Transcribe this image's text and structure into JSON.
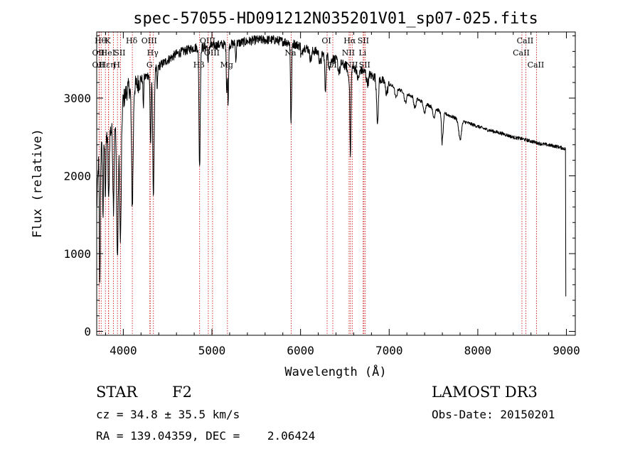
{
  "chart_data": {
    "type": "line",
    "title": "spec-57055-HD091212N035201V01_sp07-025.fits",
    "xlabel": "Wavelength (Å)",
    "ylabel": "Flux (relative)",
    "xlim": [
      3700,
      9100
    ],
    "ylim": [
      -50,
      3850
    ],
    "xticks": [
      4000,
      5000,
      6000,
      7000,
      8000,
      9000
    ],
    "xtick_labels": [
      "4000",
      "5000",
      "6000",
      "7000",
      "8000",
      "9000"
    ],
    "yticks": [
      0,
      1000,
      2000,
      3000
    ],
    "ytick_labels": [
      "0",
      "1000",
      "2000",
      "3000"
    ],
    "grid": false,
    "legend": "none",
    "continuum": {
      "x": [
        3700,
        3720,
        3760,
        3800,
        3850,
        3900,
        3950,
        4000,
        4050,
        4100,
        4150,
        4200,
        4300,
        4400,
        4500,
        4600,
        4700,
        4800,
        4900,
        5000,
        5100,
        5200,
        5300,
        5400,
        5500,
        5600,
        5700,
        5800,
        5900,
        6000,
        6100,
        6200,
        6300,
        6400,
        6500,
        6600,
        6700,
        6800,
        6900,
        7000,
        7100,
        7200,
        7300,
        7400,
        7500,
        7600,
        7700,
        7800,
        7900,
        8000,
        8100,
        8200,
        8300,
        8400,
        8500,
        8600,
        8700,
        8800,
        8900,
        8990
      ],
      "y": [
        1600,
        2200,
        2400,
        2500,
        2600,
        2650,
        2750,
        3000,
        3150,
        3150,
        3200,
        3250,
        3320,
        3420,
        3500,
        3580,
        3620,
        3660,
        3660,
        3680,
        3700,
        3700,
        3720,
        3740,
        3760,
        3760,
        3760,
        3740,
        3720,
        3680,
        3640,
        3600,
        3550,
        3500,
        3430,
        3400,
        3360,
        3300,
        3250,
        3180,
        3120,
        3060,
        3000,
        2940,
        2880,
        2820,
        2770,
        2720,
        2680,
        2640,
        2600,
        2570,
        2540,
        2500,
        2480,
        2450,
        2420,
        2400,
        2380,
        2350
      ]
    },
    "absorption_lines": [
      {
        "center": 3735,
        "depth": 1700,
        "width": 5
      },
      {
        "center": 3771,
        "depth": 900,
        "width": 5
      },
      {
        "center": 3798,
        "depth": 700,
        "width": 5
      },
      {
        "center": 3835,
        "depth": 900,
        "width": 6
      },
      {
        "center": 3889,
        "depth": 1000,
        "width": 7
      },
      {
        "center": 3934,
        "depth": 1750,
        "width": 9
      },
      {
        "center": 3968,
        "depth": 1650,
        "width": 9
      },
      {
        "center": 4102,
        "depth": 1500,
        "width": 9
      },
      {
        "center": 4226,
        "depth": 400,
        "width": 4
      },
      {
        "center": 4308,
        "depth": 900,
        "width": 6
      },
      {
        "center": 4340,
        "depth": 1600,
        "width": 8
      },
      {
        "center": 4383,
        "depth": 300,
        "width": 4
      },
      {
        "center": 4861,
        "depth": 1550,
        "width": 7
      },
      {
        "center": 4957,
        "depth": 250,
        "width": 4
      },
      {
        "center": 5167,
        "depth": 600,
        "width": 5
      },
      {
        "center": 5183,
        "depth": 800,
        "width": 5
      },
      {
        "center": 5270,
        "depth": 250,
        "width": 4
      },
      {
        "center": 5890,
        "depth": 650,
        "width": 5
      },
      {
        "center": 5896,
        "depth": 600,
        "width": 5
      },
      {
        "center": 6280,
        "depth": 500,
        "width": 6
      },
      {
        "center": 6563,
        "depth": 1150,
        "width": 6
      },
      {
        "center": 6870,
        "depth": 500,
        "width": 8
      },
      {
        "center": 7600,
        "depth": 350,
        "width": 10
      },
      {
        "center": 7800,
        "depth": 250,
        "width": 15
      }
    ],
    "reference_lines": [
      {
        "x": 3727,
        "label": "OII",
        "row": 2
      },
      {
        "x": 3727,
        "label": "OII",
        "row": 3
      },
      {
        "x": 3750,
        "label": "Hθ",
        "row": 1
      },
      {
        "x": 3798,
        "label": "Hε",
        "row": 3
      },
      {
        "x": 3833,
        "label": "K",
        "row": 1
      },
      {
        "x": 3835,
        "label": "HeI",
        "row": 2
      },
      {
        "x": 3889,
        "label": "η",
        "row": 3
      },
      {
        "x": 3934,
        "label": "H",
        "row": 3
      },
      {
        "x": 3968,
        "label": "SII",
        "row": 2
      },
      {
        "x": 4102,
        "label": "Hδ",
        "row": 1
      },
      {
        "x": 4300,
        "label": "OIII",
        "row": 1
      },
      {
        "x": 4304,
        "label": "G",
        "row": 3
      },
      {
        "x": 4340,
        "label": "Hγ",
        "row": 2
      },
      {
        "x": 4861,
        "label": "Hβ",
        "row": 3
      },
      {
        "x": 4959,
        "label": "OIII",
        "row": 1
      },
      {
        "x": 5007,
        "label": "OIII",
        "row": 2
      },
      {
        "x": 5175,
        "label": "Mg",
        "row": 3
      },
      {
        "x": 5894,
        "label": "Na",
        "row": 2
      },
      {
        "x": 6300,
        "label": "OI",
        "row": 1
      },
      {
        "x": 6364,
        "label": "OI",
        "row": 3
      },
      {
        "x": 6548,
        "label": "NII",
        "row": 2
      },
      {
        "x": 6563,
        "label": "Hα",
        "row": 1
      },
      {
        "x": 6583,
        "label": "NII",
        "row": 3
      },
      {
        "x": 6707,
        "label": "Li",
        "row": 2
      },
      {
        "x": 6716,
        "label": "SII",
        "row": 1
      },
      {
        "x": 6731,
        "label": "SII",
        "row": 3
      },
      {
        "x": 8498,
        "label": "CaII",
        "row": 2
      },
      {
        "x": 8542,
        "label": "CaII",
        "row": 1
      },
      {
        "x": 8662,
        "label": "CaII",
        "row": 3
      }
    ]
  },
  "footer": {
    "object_class": "STAR",
    "subclass": "F2",
    "cz": "cz = 34.8 ± 35.5 km/s",
    "radec": "RA = 139.04359, DEC =    2.06424",
    "survey": "LAMOST DR3",
    "obs_date": "Obs-Date: 20150201"
  },
  "colors": {
    "spectrum": "#000000",
    "reference_line": "#cc0000",
    "axes": "#000000"
  }
}
